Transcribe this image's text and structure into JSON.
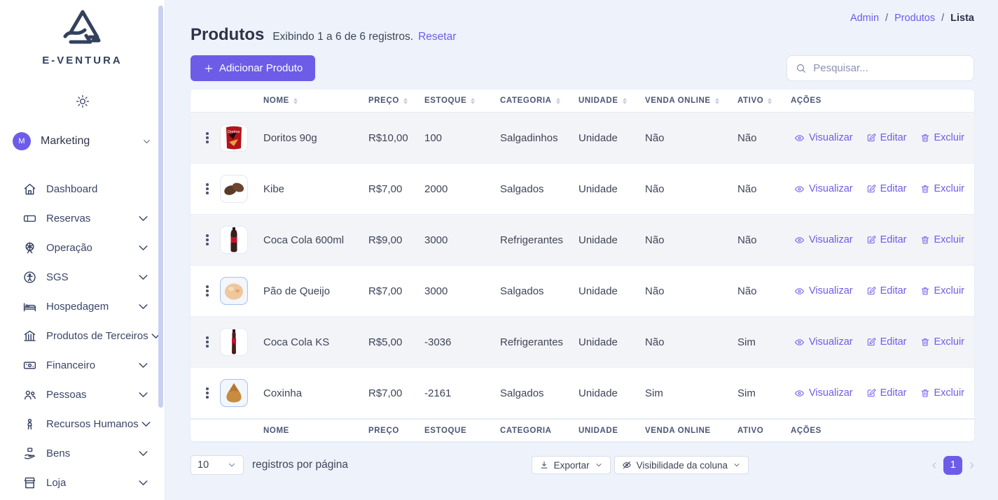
{
  "brand": {
    "name": "E-VENTURA"
  },
  "user": {
    "initial": "M",
    "name": "Marketing"
  },
  "sidebar": {
    "items": [
      {
        "label": "Dashboard",
        "icon": "home",
        "chevron": false
      },
      {
        "label": "Reservas",
        "icon": "ticket",
        "chevron": true
      },
      {
        "label": "Operação",
        "icon": "ferris-wheel",
        "chevron": true
      },
      {
        "label": "SGS",
        "icon": "accessibility",
        "chevron": true
      },
      {
        "label": "Hospedagem",
        "icon": "bed",
        "chevron": true
      },
      {
        "label": "Produtos de Terceiros",
        "icon": "bank",
        "chevron": true
      },
      {
        "label": "Financeiro",
        "icon": "banknote",
        "chevron": true
      },
      {
        "label": "Pessoas",
        "icon": "users",
        "chevron": true
      },
      {
        "label": "Recursos Humanos",
        "icon": "person",
        "chevron": true
      },
      {
        "label": "Bens",
        "icon": "hand-box",
        "chevron": true
      },
      {
        "label": "Loja",
        "icon": "store",
        "chevron": true
      }
    ]
  },
  "breadcrumb": {
    "links": [
      "Admin",
      "Produtos"
    ],
    "current": "Lista"
  },
  "page": {
    "title": "Produtos",
    "subtitle": "Exibindo 1 a 6 de 6 registros.",
    "reset_label": "Resetar",
    "add_button_label": "Adicionar Produto"
  },
  "search": {
    "placeholder": "Pesquisar..."
  },
  "table": {
    "columns": [
      {
        "label": "NOME",
        "sortable": true
      },
      {
        "label": "PREÇO",
        "sortable": true
      },
      {
        "label": "ESTOQUE",
        "sortable": true
      },
      {
        "label": "CATEGORIA",
        "sortable": true
      },
      {
        "label": "UNIDADE",
        "sortable": true
      },
      {
        "label": "VENDA ONLINE",
        "sortable": true
      },
      {
        "label": "ATIVO",
        "sortable": true
      },
      {
        "label": "AÇÕES",
        "sortable": false
      }
    ],
    "rows": [
      {
        "image": "doritos",
        "highlight": false,
        "nome": "Doritos 90g",
        "preco": "R$10,00",
        "estoque": "100",
        "categoria": "Salgadinhos",
        "unidade": "Unidade",
        "venda_online": "Não",
        "ativo": "Não"
      },
      {
        "image": "kibe",
        "highlight": false,
        "nome": "Kibe",
        "preco": "R$7,00",
        "estoque": "2000",
        "categoria": "Salgados",
        "unidade": "Unidade",
        "venda_online": "Não",
        "ativo": "Não"
      },
      {
        "image": "coke600",
        "highlight": false,
        "nome": "Coca Cola 600ml",
        "preco": "R$9,00",
        "estoque": "3000",
        "categoria": "Refrigerantes",
        "unidade": "Unidade",
        "venda_online": "Não",
        "ativo": "Não"
      },
      {
        "image": "paoqueijo",
        "highlight": true,
        "nome": "Pão de Queijo",
        "preco": "R$7,00",
        "estoque": "3000",
        "categoria": "Salgados",
        "unidade": "Unidade",
        "venda_online": "Não",
        "ativo": "Não"
      },
      {
        "image": "cokeks",
        "highlight": false,
        "nome": "Coca Cola KS",
        "preco": "R$5,00",
        "estoque": "-3036",
        "categoria": "Refrigerantes",
        "unidade": "Unidade",
        "venda_online": "Não",
        "ativo": "Sim"
      },
      {
        "image": "coxinha",
        "highlight": true,
        "nome": "Coxinha",
        "preco": "R$7,00",
        "estoque": "-2161",
        "categoria": "Salgados",
        "unidade": "Unidade",
        "venda_online": "Sim",
        "ativo": "Sim"
      }
    ],
    "row_actions": {
      "view": "Visualizar",
      "edit": "Editar",
      "delete": "Excluir"
    }
  },
  "bottom_bar": {
    "page_size": "10",
    "page_size_label": "registros por página",
    "export_label": "Exportar",
    "visibility_label": "Visibilidade da coluna",
    "current_page": "1"
  },
  "colors": {
    "accent": "#6D5CE8",
    "page_bg": "#EDF2FB",
    "stripe": "#F3F4F8",
    "brand_navy": "#33415C"
  }
}
